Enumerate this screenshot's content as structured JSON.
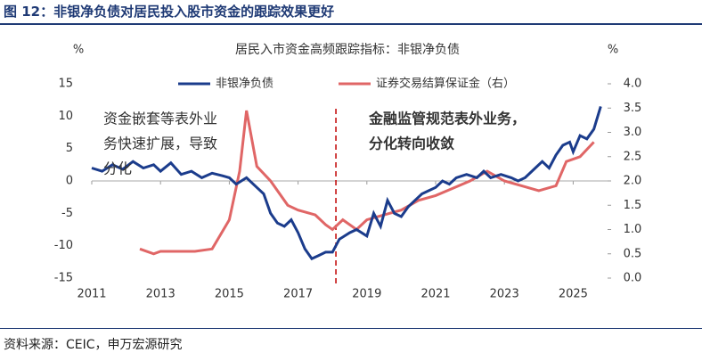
{
  "header": {
    "title": "图 12：非银净负债对居民投入股市资金的跟踪效果更好"
  },
  "footer": {
    "source": "资料来源：CEIC，申万宏源研究"
  },
  "chart_data": {
    "type": "line",
    "title": "居民入市资金高频跟踪指标：非银净负债",
    "y_unit": "%",
    "y2_unit": "%",
    "xlim": [
      2011,
      2026
    ],
    "xticks": [
      2011,
      2013,
      2015,
      2017,
      2019,
      2021,
      2023,
      2025
    ],
    "ylim": [
      -15,
      15
    ],
    "yticks": [
      -15,
      -10,
      -5,
      0,
      5,
      10,
      15
    ],
    "y2lim": [
      0,
      4
    ],
    "y2ticks": [
      {
        "value": 0,
        "label": "0.0"
      },
      {
        "value": 0.5,
        "label": "0.5"
      },
      {
        "value": 1,
        "label": "1.0"
      },
      {
        "value": 1.5,
        "label": "1.5"
      },
      {
        "value": 2,
        "label": "2.0"
      },
      {
        "value": 2.5,
        "label": "2.5"
      },
      {
        "value": 3,
        "label": "3.0"
      },
      {
        "value": 3.5,
        "label": "3.5"
      },
      {
        "value": 4,
        "label": "4.0"
      }
    ],
    "zero_line": true,
    "series": [
      {
        "name": "非银净负债",
        "color": "#1b3c8c",
        "axis": "y",
        "x": [
          2011.0,
          2011.3,
          2011.6,
          2011.9,
          2012.2,
          2012.5,
          2012.8,
          2013.0,
          2013.3,
          2013.6,
          2013.9,
          2014.2,
          2014.5,
          2014.8,
          2015.0,
          2015.2,
          2015.5,
          2015.8,
          2016.0,
          2016.2,
          2016.4,
          2016.6,
          2016.8,
          2017.0,
          2017.2,
          2017.4,
          2017.6,
          2017.8,
          2018.0,
          2018.2,
          2018.5,
          2018.7,
          2019.0,
          2019.2,
          2019.4,
          2019.6,
          2019.8,
          2020.0,
          2020.2,
          2020.4,
          2020.6,
          2020.8,
          2021.0,
          2021.2,
          2021.4,
          2021.6,
          2021.9,
          2022.2,
          2022.4,
          2022.6,
          2022.9,
          2023.2,
          2023.4,
          2023.6,
          2023.9,
          2024.1,
          2024.3,
          2024.5,
          2024.7,
          2024.9,
          2025.0,
          2025.2,
          2025.4,
          2025.6,
          2025.8
        ],
        "values": [
          2,
          1.5,
          2.5,
          1.8,
          3,
          2,
          2.5,
          1.5,
          2.8,
          1,
          1.5,
          0.5,
          1.2,
          0.8,
          0.5,
          -0.5,
          0.5,
          -1,
          -2,
          -5,
          -6.5,
          -7,
          -6,
          -8,
          -10.5,
          -12,
          -11.5,
          -11,
          -11,
          -9,
          -8,
          -7.5,
          -8.5,
          -5,
          -7,
          -3,
          -5,
          -5.5,
          -4,
          -3,
          -2,
          -1.5,
          -1,
          0,
          -0.5,
          0.5,
          1,
          0.5,
          1.5,
          0.5,
          1,
          0.5,
          0,
          0.5,
          2,
          3,
          2,
          4,
          5.5,
          6,
          4.5,
          7,
          6.5,
          8,
          11.5
        ]
      },
      {
        "name": "证券交易结算保证金（右）",
        "color": "#e06666",
        "axis": "y2",
        "x": [
          2012.4,
          2012.8,
          2013.0,
          2014.0,
          2014.5,
          2015.0,
          2015.3,
          2015.5,
          2015.8,
          2016.2,
          2016.7,
          2017.0,
          2017.5,
          2017.8,
          2018.0,
          2018.3,
          2018.7,
          2019.0,
          2019.5,
          2020.0,
          2020.5,
          2021.0,
          2021.5,
          2022.0,
          2022.5,
          2023.0,
          2023.5,
          2024.0,
          2024.5,
          2024.8,
          2025.2,
          2025.6
        ],
        "values": [
          0.6,
          0.5,
          0.55,
          0.55,
          0.6,
          1.2,
          2.2,
          3.45,
          2.3,
          2.0,
          1.5,
          1.4,
          1.3,
          1.1,
          1.0,
          1.2,
          1.0,
          1.2,
          1.3,
          1.4,
          1.6,
          1.7,
          1.85,
          2.0,
          2.2,
          2.0,
          1.9,
          1.8,
          1.9,
          2.4,
          2.5,
          2.8
        ]
      }
    ],
    "event_line_x": 2018.1,
    "annotations": [
      {
        "lines": [
          "资金嵌套等表外业",
          "务快速扩展，导致",
          "分化"
        ],
        "color": "#1b3c8c"
      },
      {
        "lines": [
          "金融监管规范表外业务，",
          "分化转向收敛"
        ],
        "color": "#c00000"
      }
    ]
  }
}
